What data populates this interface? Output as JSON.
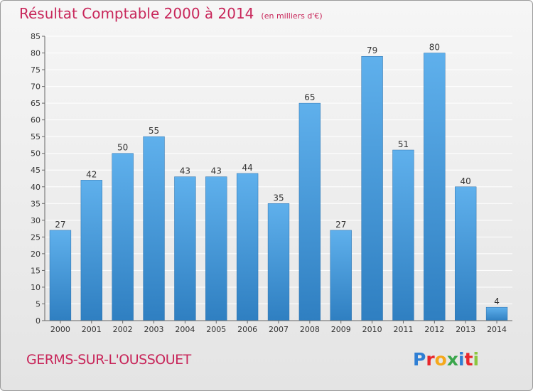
{
  "header": {
    "title": "Résultat Comptable 2000 à 2014",
    "subtitle": "(en milliers d'€)"
  },
  "footer": {
    "commune": "GERMS-SUR-L'OUSSOUET",
    "logo_letters": [
      "P",
      "r",
      "o",
      "x",
      "i",
      "t",
      "i"
    ],
    "logo_colors": [
      "#2f7fd4",
      "#e8262c",
      "#f5a81c",
      "#3aa64c",
      "#2f7fd4",
      "#e8262c",
      "#8cc63f"
    ]
  },
  "colors": {
    "title": "#c8265a",
    "bar_top": "#5fb0ec",
    "bar_bottom": "#2f7fc1",
    "grid": "#ffffff",
    "text": "#333333"
  },
  "chart_data": {
    "type": "bar",
    "categories": [
      "2000",
      "2001",
      "2002",
      "2003",
      "2004",
      "2005",
      "2006",
      "2007",
      "2008",
      "2009",
      "2010",
      "2011",
      "2012",
      "2013",
      "2014"
    ],
    "values": [
      27,
      42,
      50,
      55,
      43,
      43,
      44,
      35,
      65,
      27,
      79,
      51,
      80,
      40,
      4
    ],
    "ylim": [
      0,
      85
    ],
    "yticks": [
      0,
      5,
      10,
      15,
      20,
      25,
      30,
      35,
      40,
      45,
      50,
      55,
      60,
      65,
      70,
      75,
      80,
      85
    ],
    "grid": true,
    "legend": "none"
  }
}
